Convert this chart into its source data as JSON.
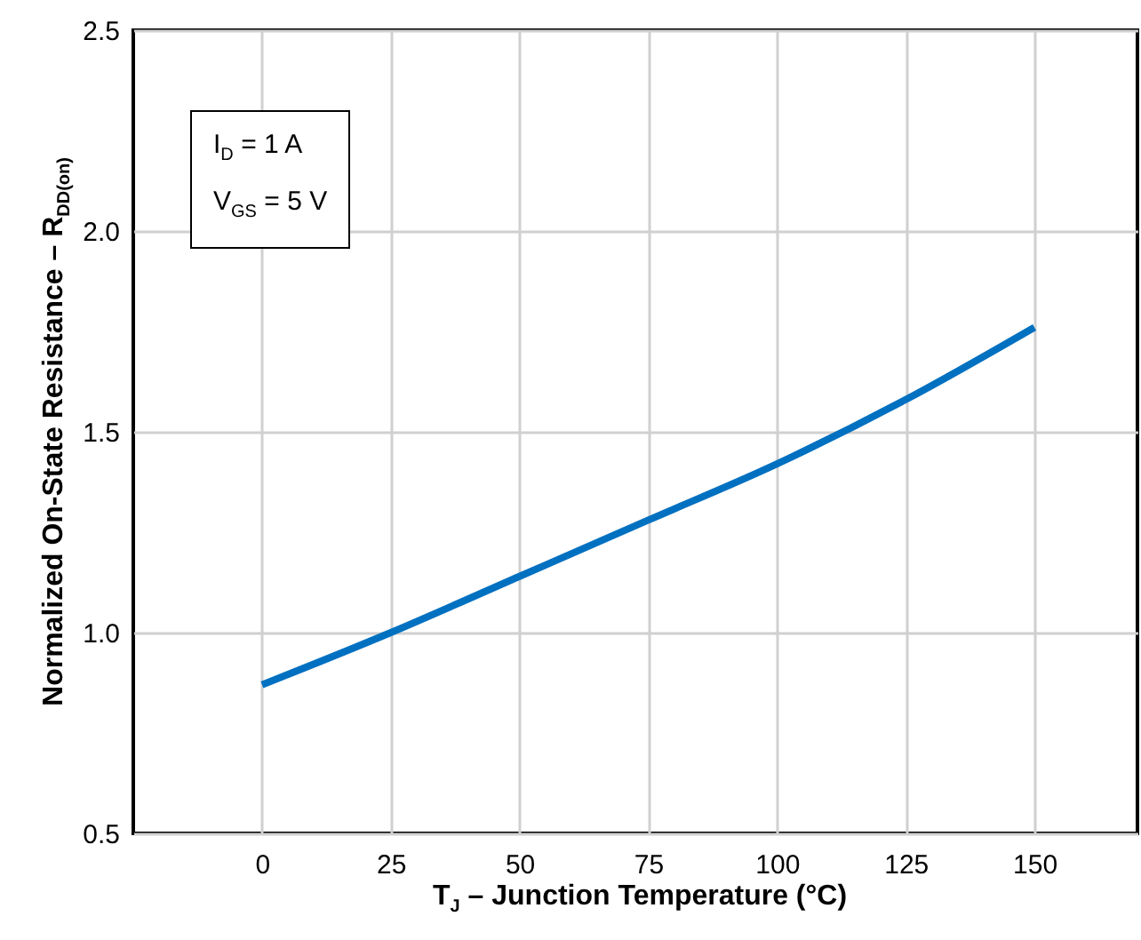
{
  "chart_data": {
    "type": "line",
    "xlabel": "T$_{J}$ – Junction Temperature (°C)",
    "ylabel": "Normalized On-State Resistance – R$_{DD(on)}$",
    "annotations": [
      "I$_{D}$ = 1 A",
      "V$_{GS}$ = 5 V"
    ],
    "x": [
      0,
      25,
      50,
      75,
      100,
      125,
      150
    ],
    "series": [
      {
        "color": "#0070c0",
        "values": [
          0.87,
          1.0,
          1.14,
          1.28,
          1.42,
          1.58,
          1.76
        ]
      }
    ],
    "xlim": [
      -25,
      170
    ],
    "xticks": [
      0,
      25,
      50,
      75,
      100,
      125,
      150
    ],
    "ylim": [
      0.5,
      2.5
    ],
    "yticks": [
      0.5,
      {
        "value": 1,
        "label": "1.0"
      },
      1.5,
      {
        "value": 2,
        "label": "2.0"
      },
      2.5
    ],
    "grid": true,
    "marker": "none",
    "line_style": "solid"
  }
}
